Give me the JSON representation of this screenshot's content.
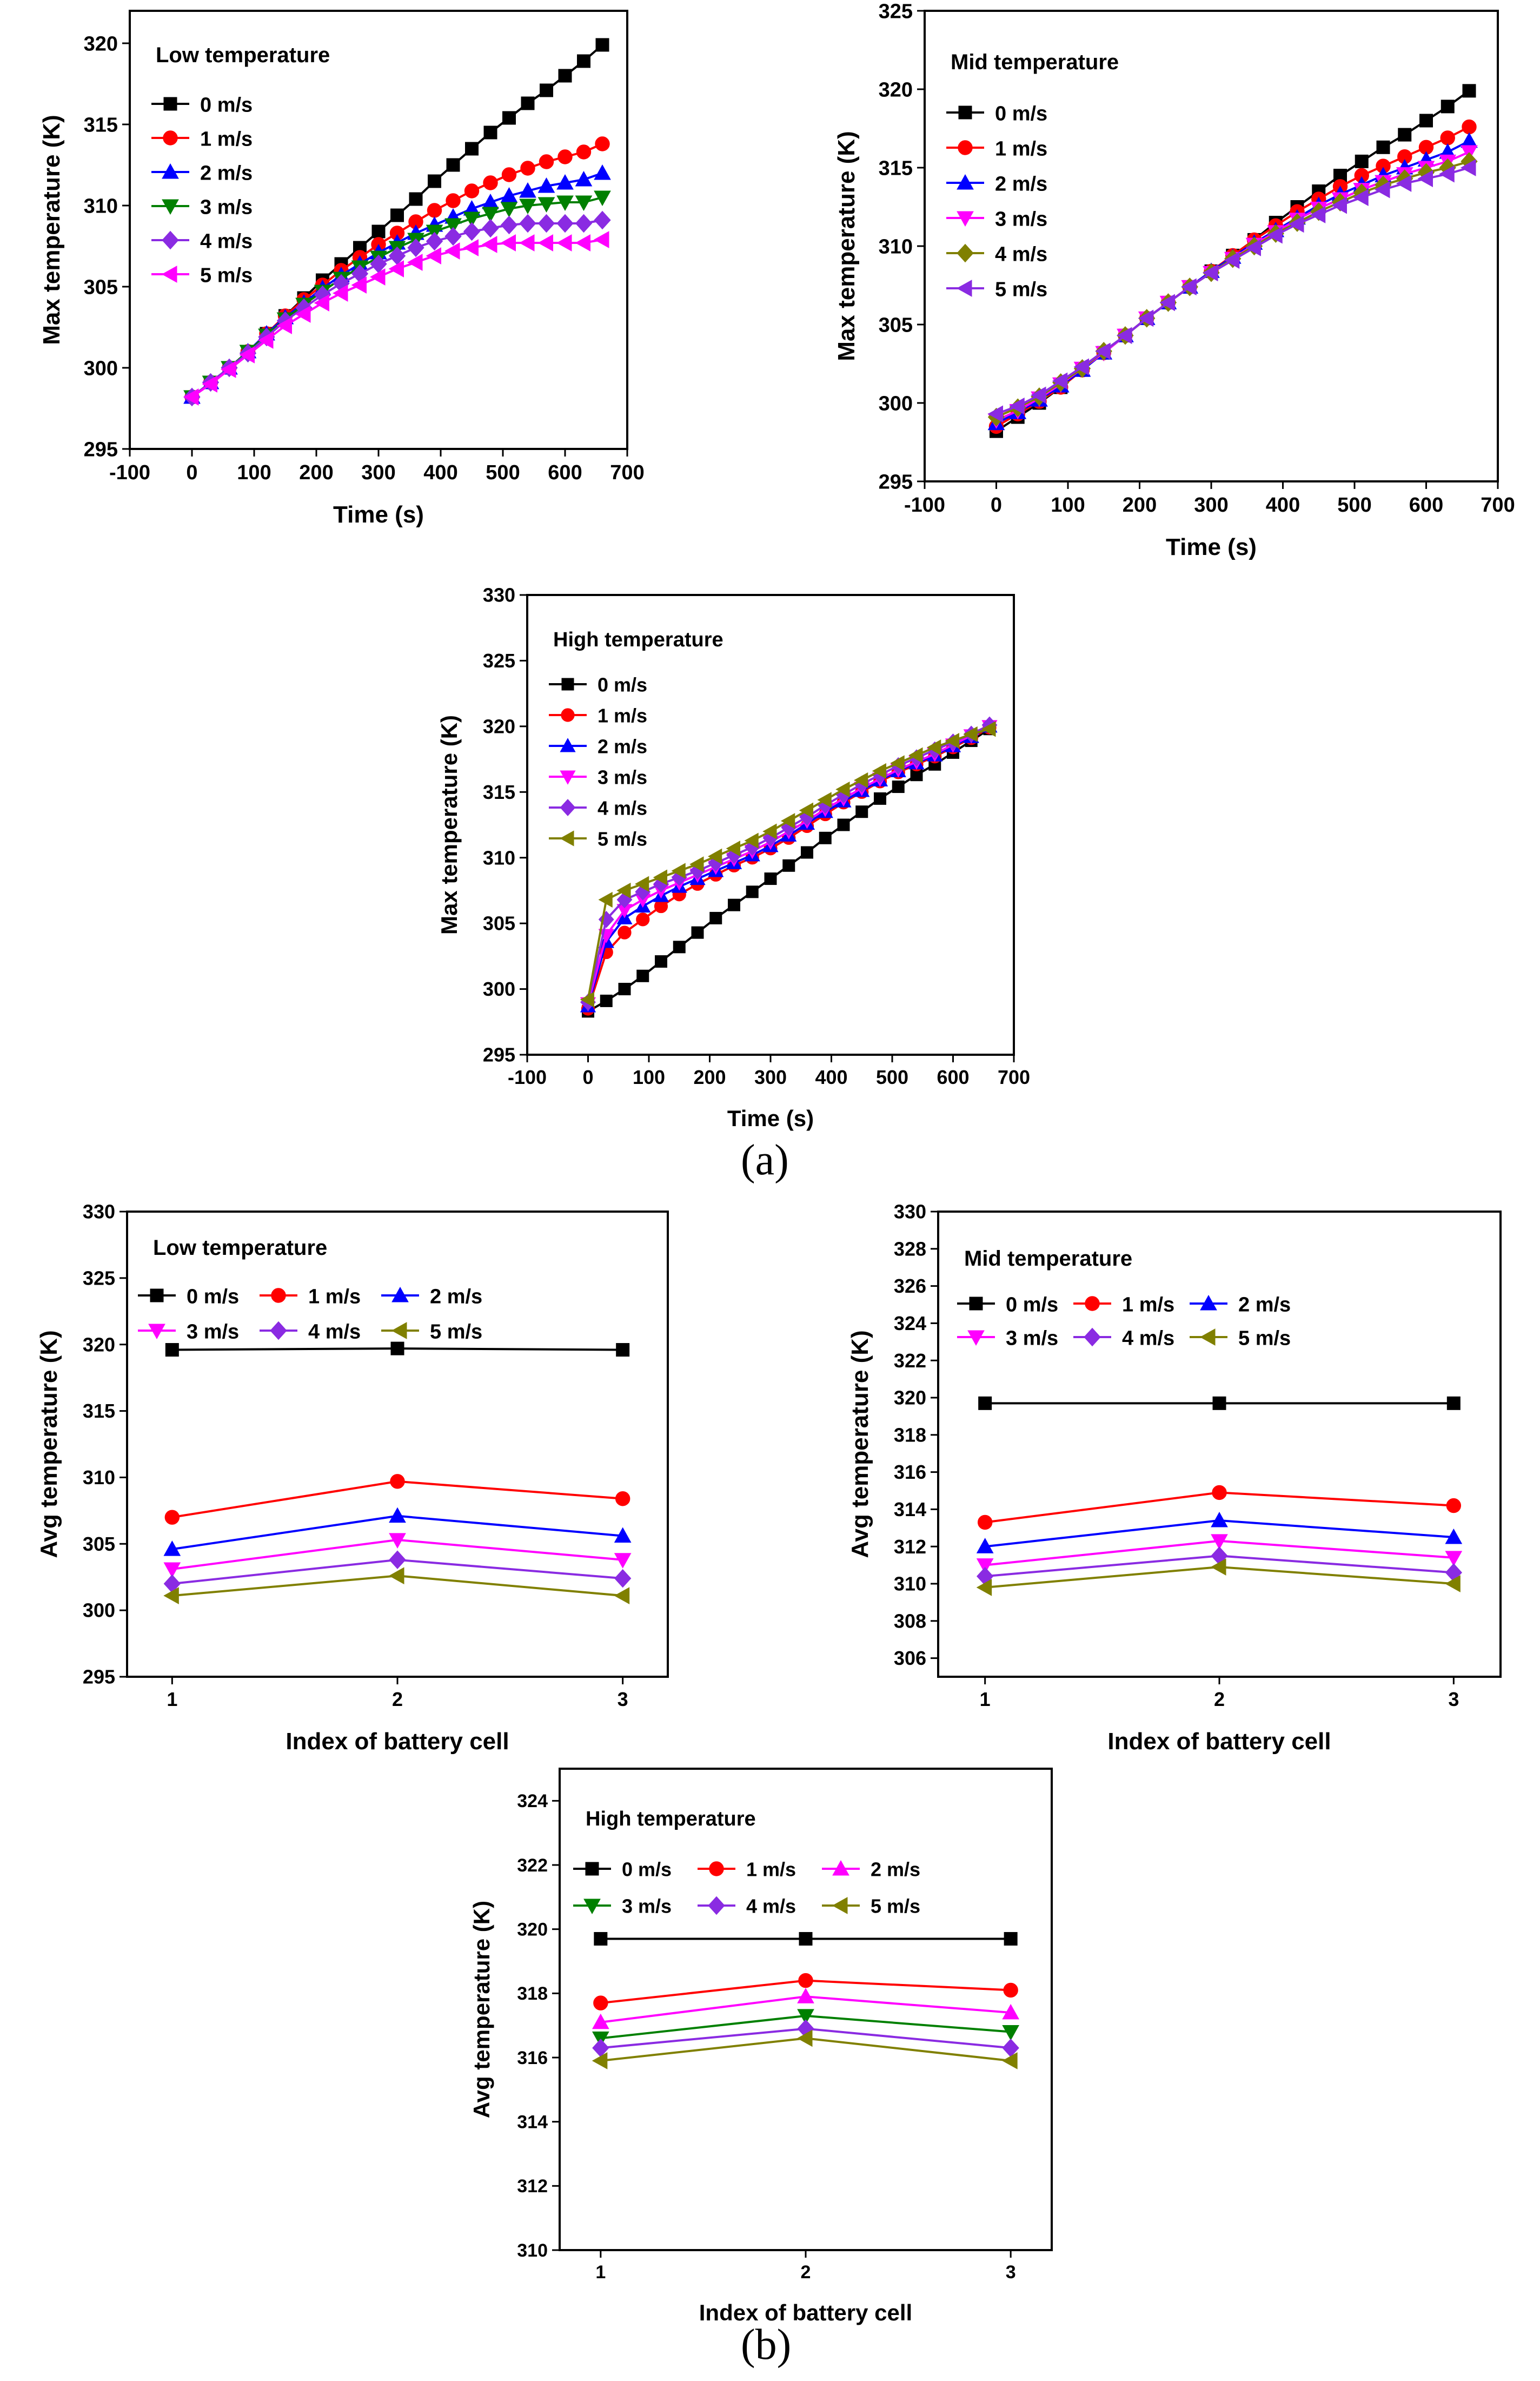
{
  "figure": {
    "caption_a": "(a)",
    "caption_b": "(b)"
  },
  "chart_data": [
    {
      "id": "a1",
      "type": "line",
      "title": "Low temperature",
      "xlabel": "Time (s)",
      "ylabel": "Max temperature (K)",
      "xlim": [
        -100,
        700
      ],
      "ylim": [
        295,
        322
      ],
      "xticks": [
        -100,
        0,
        100,
        200,
        300,
        400,
        500,
        600,
        700
      ],
      "yticks": [
        295,
        300,
        305,
        310,
        315,
        320
      ],
      "legend_columns": 1,
      "x": [
        0,
        30,
        60,
        90,
        120,
        150,
        180,
        210,
        240,
        270,
        300,
        330,
        360,
        390,
        420,
        450,
        480,
        510,
        540,
        570,
        600,
        630,
        660
      ],
      "series": [
        {
          "name": "0 m/s",
          "color": "#000000",
          "marker": "square",
          "values": [
            298.2,
            299.1,
            300.0,
            301.0,
            302.1,
            303.2,
            304.3,
            305.4,
            306.4,
            307.4,
            308.4,
            309.4,
            310.4,
            311.5,
            312.5,
            313.5,
            314.5,
            315.4,
            316.3,
            317.1,
            318.0,
            318.9,
            319.9
          ]
        },
        {
          "name": "1 m/s",
          "color": "#ff0000",
          "marker": "circle",
          "values": [
            298.2,
            299.1,
            300.0,
            301.0,
            302.1,
            303.2,
            304.2,
            305.1,
            306.0,
            306.8,
            307.6,
            308.3,
            309.0,
            309.7,
            310.3,
            310.9,
            311.4,
            311.9,
            312.3,
            312.7,
            313.0,
            313.3,
            313.8
          ]
        },
        {
          "name": "2 m/s",
          "color": "#0000ff",
          "marker": "triangle-up",
          "values": [
            298.2,
            299.1,
            300.0,
            301.0,
            302.1,
            303.1,
            304.0,
            304.9,
            305.7,
            306.4,
            307.1,
            307.7,
            308.3,
            308.8,
            309.3,
            309.8,
            310.2,
            310.6,
            310.9,
            311.2,
            311.4,
            311.6,
            312.0
          ]
        },
        {
          "name": "3 m/s",
          "color": "#008000",
          "marker": "triangle-down",
          "values": [
            298.2,
            299.1,
            300.0,
            301.0,
            302.0,
            303.0,
            303.9,
            304.7,
            305.5,
            306.2,
            306.8,
            307.4,
            307.9,
            308.4,
            308.8,
            309.2,
            309.5,
            309.8,
            310.0,
            310.1,
            310.2,
            310.2,
            310.5
          ]
        },
        {
          "name": "4 m/s",
          "color": "#8a2be2",
          "marker": "diamond",
          "values": [
            298.2,
            299.1,
            300.0,
            300.9,
            301.9,
            302.9,
            303.7,
            304.5,
            305.2,
            305.8,
            306.4,
            306.9,
            307.4,
            307.8,
            308.1,
            308.4,
            308.6,
            308.8,
            308.9,
            308.9,
            308.9,
            308.9,
            309.1
          ]
        },
        {
          "name": "5 m/s",
          "color": "#ff00ff",
          "marker": "triangle-left",
          "values": [
            298.2,
            299.0,
            299.9,
            300.8,
            301.7,
            302.6,
            303.3,
            304.0,
            304.6,
            305.1,
            305.6,
            306.1,
            306.5,
            306.9,
            307.2,
            307.4,
            307.6,
            307.7,
            307.7,
            307.7,
            307.7,
            307.7,
            307.9
          ]
        }
      ]
    },
    {
      "id": "a2",
      "type": "line",
      "title": "Mid temperature",
      "xlabel": "Time (s)",
      "ylabel": "Max temperature (K)",
      "xlim": [
        -100,
        700
      ],
      "ylim": [
        295,
        325
      ],
      "xticks": [
        -100,
        0,
        100,
        200,
        300,
        400,
        500,
        600,
        700
      ],
      "yticks": [
        295,
        300,
        305,
        310,
        315,
        320,
        325
      ],
      "legend_columns": 1,
      "x": [
        0,
        30,
        60,
        90,
        120,
        150,
        180,
        210,
        240,
        270,
        300,
        330,
        360,
        390,
        420,
        450,
        480,
        510,
        540,
        570,
        600,
        630,
        660
      ],
      "series": [
        {
          "name": "0 m/s",
          "color": "#000000",
          "marker": "square",
          "values": [
            298.2,
            299.1,
            300.0,
            301.0,
            302.1,
            303.2,
            304.3,
            305.4,
            306.4,
            307.4,
            308.4,
            309.4,
            310.4,
            311.5,
            312.5,
            313.5,
            314.5,
            315.4,
            316.3,
            317.1,
            318.0,
            318.9,
            319.9
          ]
        },
        {
          "name": "1 m/s",
          "color": "#ff0000",
          "marker": "circle",
          "values": [
            298.5,
            299.3,
            300.1,
            301.0,
            302.1,
            303.2,
            304.3,
            305.4,
            306.4,
            307.4,
            308.4,
            309.4,
            310.4,
            311.3,
            312.2,
            313.0,
            313.8,
            314.5,
            315.1,
            315.7,
            316.3,
            316.9,
            317.6
          ]
        },
        {
          "name": "2 m/s",
          "color": "#0000ff",
          "marker": "triangle-up",
          "values": [
            298.7,
            299.4,
            300.2,
            301.1,
            302.1,
            303.2,
            304.3,
            305.4,
            306.4,
            307.4,
            308.4,
            309.3,
            310.2,
            311.0,
            311.8,
            312.6,
            313.3,
            313.9,
            314.5,
            315.0,
            315.5,
            316.0,
            316.7
          ]
        },
        {
          "name": "3 m/s",
          "color": "#ff00ff",
          "marker": "triangle-down",
          "values": [
            298.9,
            299.5,
            300.3,
            301.2,
            302.2,
            303.2,
            304.3,
            305.4,
            306.4,
            307.4,
            308.3,
            309.2,
            310.1,
            310.9,
            311.7,
            312.4,
            313.0,
            313.6,
            314.1,
            314.6,
            315.0,
            315.4,
            316.0
          ]
        },
        {
          "name": "4 m/s",
          "color": "#808000",
          "marker": "diamond",
          "values": [
            299.1,
            299.7,
            300.4,
            301.3,
            302.2,
            303.3,
            304.3,
            305.4,
            306.4,
            307.4,
            308.3,
            309.2,
            310.0,
            310.8,
            311.5,
            312.2,
            312.8,
            313.4,
            313.9,
            314.3,
            314.7,
            315.0,
            315.4
          ]
        },
        {
          "name": "5 m/s",
          "color": "#8a2be2",
          "marker": "triangle-left",
          "values": [
            299.3,
            299.8,
            300.5,
            301.4,
            302.3,
            303.3,
            304.3,
            305.4,
            306.4,
            307.4,
            308.3,
            309.1,
            309.9,
            310.7,
            311.4,
            312.0,
            312.6,
            313.1,
            313.6,
            314.0,
            314.3,
            314.6,
            315.0
          ]
        }
      ]
    },
    {
      "id": "a3",
      "type": "line",
      "title": "High temperature",
      "xlabel": "Time (s)",
      "ylabel": "Max temperature (K)",
      "xlim": [
        -100,
        700
      ],
      "ylim": [
        295,
        330
      ],
      "xticks": [
        -100,
        0,
        100,
        200,
        300,
        400,
        500,
        600,
        700
      ],
      "yticks": [
        295,
        300,
        305,
        310,
        315,
        320,
        325,
        330
      ],
      "legend_columns": 1,
      "x": [
        0,
        30,
        60,
        90,
        120,
        150,
        180,
        210,
        240,
        270,
        300,
        330,
        360,
        390,
        420,
        450,
        480,
        510,
        540,
        570,
        600,
        630,
        660
      ],
      "series": [
        {
          "name": "0 m/s",
          "color": "#000000",
          "marker": "square",
          "values": [
            298.3,
            299.1,
            300.0,
            301.0,
            302.1,
            303.2,
            304.3,
            305.4,
            306.4,
            307.4,
            308.4,
            309.4,
            310.4,
            311.5,
            312.5,
            313.5,
            314.5,
            315.4,
            316.3,
            317.1,
            318.0,
            318.9,
            319.8
          ]
        },
        {
          "name": "1 m/s",
          "color": "#ff0000",
          "marker": "circle",
          "values": [
            298.5,
            302.8,
            304.3,
            305.3,
            306.3,
            307.2,
            308.0,
            308.7,
            309.4,
            310.0,
            310.7,
            311.5,
            312.4,
            313.3,
            314.2,
            315.0,
            315.8,
            316.5,
            317.1,
            317.7,
            318.4,
            319.1,
            319.9
          ]
        },
        {
          "name": "2 m/s",
          "color": "#0000ff",
          "marker": "triangle-up",
          "values": [
            298.7,
            303.6,
            305.4,
            306.3,
            307.1,
            307.8,
            308.4,
            309.0,
            309.6,
            310.2,
            310.9,
            311.7,
            312.6,
            313.5,
            314.3,
            315.1,
            315.9,
            316.6,
            317.2,
            317.8,
            318.5,
            319.2,
            320.0
          ]
        },
        {
          "name": "3 m/s",
          "color": "#ff00ff",
          "marker": "triangle-down",
          "values": [
            298.9,
            304.1,
            306.0,
            306.8,
            307.5,
            308.1,
            308.7,
            309.3,
            309.9,
            310.5,
            311.2,
            312.0,
            312.8,
            313.7,
            314.5,
            315.3,
            316.0,
            316.7,
            317.3,
            317.9,
            318.6,
            319.3,
            320.0
          ]
        },
        {
          "name": "4 m/s",
          "color": "#8a2be2",
          "marker": "diamond",
          "values": [
            299.0,
            305.3,
            306.8,
            307.4,
            308.0,
            308.5,
            309.0,
            309.6,
            310.2,
            310.8,
            311.5,
            312.3,
            313.1,
            314.0,
            314.8,
            315.6,
            316.3,
            317.0,
            317.6,
            318.2,
            318.8,
            319.4,
            320.1
          ]
        },
        {
          "name": "5 m/s",
          "color": "#808000",
          "marker": "triangle-left",
          "values": [
            299.2,
            306.8,
            307.5,
            308.0,
            308.5,
            309.0,
            309.5,
            310.1,
            310.7,
            311.3,
            312.0,
            312.8,
            313.6,
            314.4,
            315.2,
            315.9,
            316.6,
            317.2,
            317.8,
            318.4,
            318.9,
            319.4,
            319.8
          ]
        }
      ]
    },
    {
      "id": "b1",
      "type": "line",
      "title": "Low temperature",
      "xlabel": "Index of battery cell",
      "ylabel": "Avg temperature (K)",
      "xlim": [
        0.8,
        3.2
      ],
      "ylim": [
        295,
        330
      ],
      "xticks": [
        1,
        2,
        3
      ],
      "yticks": [
        295,
        300,
        305,
        310,
        315,
        320,
        325,
        330
      ],
      "legend_columns": 3,
      "x": [
        1,
        2,
        3
      ],
      "series": [
        {
          "name": "0 m/s",
          "color": "#000000",
          "marker": "square",
          "values": [
            319.6,
            319.7,
            319.6
          ]
        },
        {
          "name": "1 m/s",
          "color": "#ff0000",
          "marker": "circle",
          "values": [
            307.0,
            309.7,
            308.4
          ]
        },
        {
          "name": "2 m/s",
          "color": "#0000ff",
          "marker": "triangle-up",
          "values": [
            304.6,
            307.1,
            305.6
          ]
        },
        {
          "name": "3 m/s",
          "color": "#ff00ff",
          "marker": "triangle-down",
          "values": [
            303.1,
            305.3,
            303.8
          ]
        },
        {
          "name": "4 m/s",
          "color": "#8a2be2",
          "marker": "diamond",
          "values": [
            302.0,
            303.8,
            302.4
          ]
        },
        {
          "name": "5 m/s",
          "color": "#808000",
          "marker": "triangle-left",
          "values": [
            301.1,
            302.6,
            301.1
          ]
        }
      ]
    },
    {
      "id": "b2",
      "type": "line",
      "title": "Mid temperature",
      "xlabel": "Index of battery cell",
      "ylabel": "Avg temperature (K)",
      "xlim": [
        0.8,
        3.2
      ],
      "ylim": [
        305,
        330
      ],
      "xticks": [
        1,
        2,
        3
      ],
      "yticks": [
        306,
        308,
        310,
        312,
        314,
        316,
        318,
        320,
        322,
        324,
        326,
        328,
        330
      ],
      "legend_columns": 3,
      "x": [
        1,
        2,
        3
      ],
      "series": [
        {
          "name": "0 m/s",
          "color": "#000000",
          "marker": "square",
          "values": [
            319.7,
            319.7,
            319.7
          ]
        },
        {
          "name": "1 m/s",
          "color": "#ff0000",
          "marker": "circle",
          "values": [
            313.3,
            314.9,
            314.2
          ]
        },
        {
          "name": "2 m/s",
          "color": "#0000ff",
          "marker": "triangle-up",
          "values": [
            312.0,
            313.4,
            312.5
          ]
        },
        {
          "name": "3 m/s",
          "color": "#ff00ff",
          "marker": "triangle-down",
          "values": [
            311.0,
            312.3,
            311.4
          ]
        },
        {
          "name": "4 m/s",
          "color": "#8a2be2",
          "marker": "diamond",
          "values": [
            310.4,
            311.5,
            310.6
          ]
        },
        {
          "name": "5 m/s",
          "color": "#808000",
          "marker": "triangle-left",
          "values": [
            309.8,
            310.9,
            310.0
          ]
        }
      ]
    },
    {
      "id": "b3",
      "type": "line",
      "title": "High temperature",
      "xlabel": "Index of battery cell",
      "ylabel": "Avg temperature (K)",
      "xlim": [
        0.8,
        3.2
      ],
      "ylim": [
        310,
        325
      ],
      "xticks": [
        1,
        2,
        3
      ],
      "yticks": [
        310,
        312,
        314,
        316,
        318,
        320,
        322,
        324
      ],
      "legend_columns": 3,
      "x": [
        1,
        2,
        3
      ],
      "series": [
        {
          "name": "0 m/s",
          "color": "#000000",
          "marker": "square",
          "values": [
            319.7,
            319.7,
            319.7
          ]
        },
        {
          "name": "1 m/s",
          "color": "#ff0000",
          "marker": "circle",
          "values": [
            317.7,
            318.4,
            318.1
          ]
        },
        {
          "name": "2 m/s",
          "color": "#ff00ff",
          "marker": "triangle-up",
          "values": [
            317.1,
            317.9,
            317.4
          ]
        },
        {
          "name": "3 m/s",
          "color": "#008000",
          "marker": "triangle-down",
          "values": [
            316.6,
            317.3,
            316.8
          ]
        },
        {
          "name": "4 m/s",
          "color": "#8a2be2",
          "marker": "diamond",
          "values": [
            316.3,
            316.9,
            316.3
          ]
        },
        {
          "name": "5 m/s",
          "color": "#808000",
          "marker": "triangle-left",
          "values": [
            315.9,
            316.6,
            315.9
          ]
        }
      ]
    }
  ]
}
